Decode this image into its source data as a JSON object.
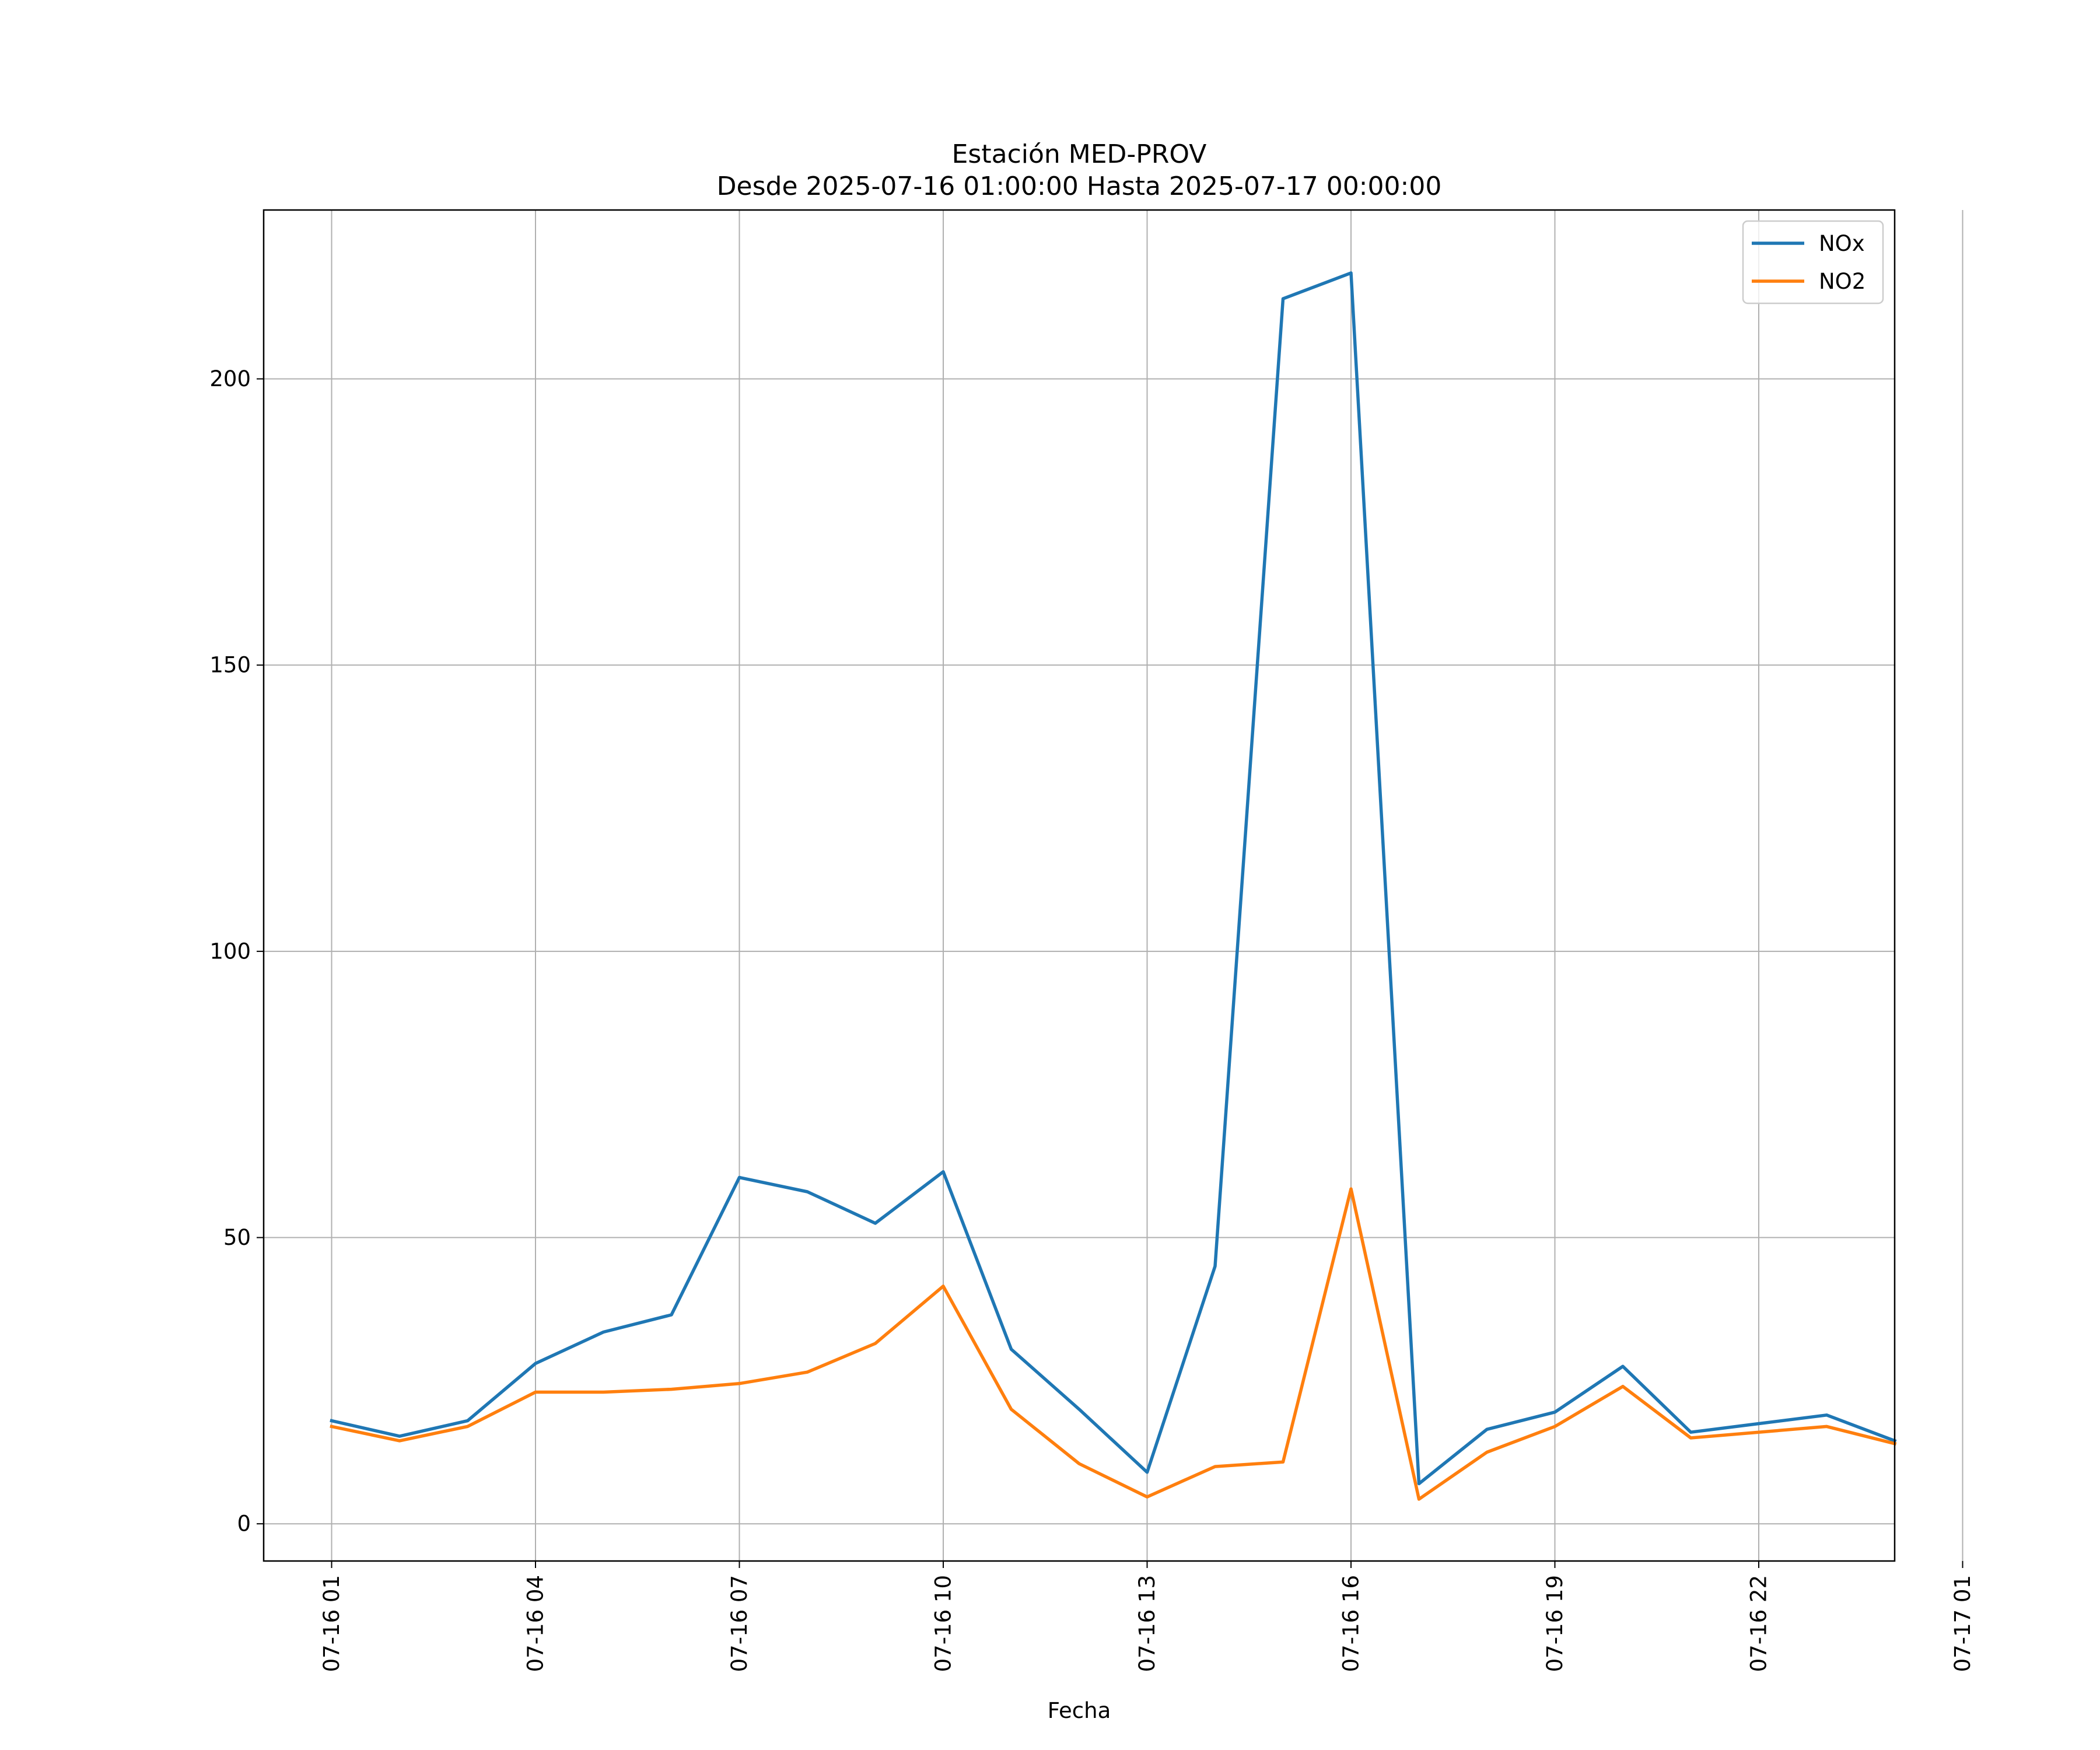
{
  "chart_data": {
    "type": "line",
    "title": "Estación MED-PROV",
    "subtitle": "Desde 2025-07-16 01:00:00 Hasta 2025-07-17 00:00:00",
    "xlabel": "Fecha",
    "ylabel": "",
    "x_range_hours": [
      0.0,
      24.0
    ],
    "ylim": [
      -6.5,
      229.5
    ],
    "grid": true,
    "legend_position": "top-right",
    "x_ticks": [
      {
        "label": "07-16 01",
        "hour": 1
      },
      {
        "label": "07-16 04",
        "hour": 4
      },
      {
        "label": "07-16 07",
        "hour": 7
      },
      {
        "label": "07-16 10",
        "hour": 10
      },
      {
        "label": "07-16 13",
        "hour": 13
      },
      {
        "label": "07-16 16",
        "hour": 16
      },
      {
        "label": "07-16 19",
        "hour": 19
      },
      {
        "label": "07-16 22",
        "hour": 22
      },
      {
        "label": "07-17 01",
        "hour": 25
      }
    ],
    "y_ticks": [
      0,
      50,
      100,
      150,
      200
    ],
    "x_hours": [
      1,
      2,
      3,
      4,
      5,
      6,
      7,
      8,
      9,
      10,
      11,
      12,
      13,
      14,
      15,
      16,
      17,
      18,
      19,
      20,
      21,
      22,
      23,
      24
    ],
    "series": [
      {
        "name": "NOx",
        "color": "#1f77b4",
        "values": [
          18,
          15.3,
          18,
          28,
          33.5,
          36.5,
          60.5,
          58,
          52.5,
          61.5,
          30.5,
          20,
          9,
          45,
          214,
          218.5,
          7,
          16.5,
          19.5,
          27.5,
          16,
          17.5,
          19,
          14.5
        ]
      },
      {
        "name": "NO2",
        "color": "#ff7f0e",
        "values": [
          17,
          14.5,
          17,
          23,
          23,
          23.5,
          24.5,
          26.5,
          31.5,
          41.5,
          20,
          10.5,
          4.7,
          10,
          10.8,
          58.5,
          4.3,
          12.5,
          17,
          24,
          15,
          16,
          17,
          14
        ]
      }
    ]
  }
}
